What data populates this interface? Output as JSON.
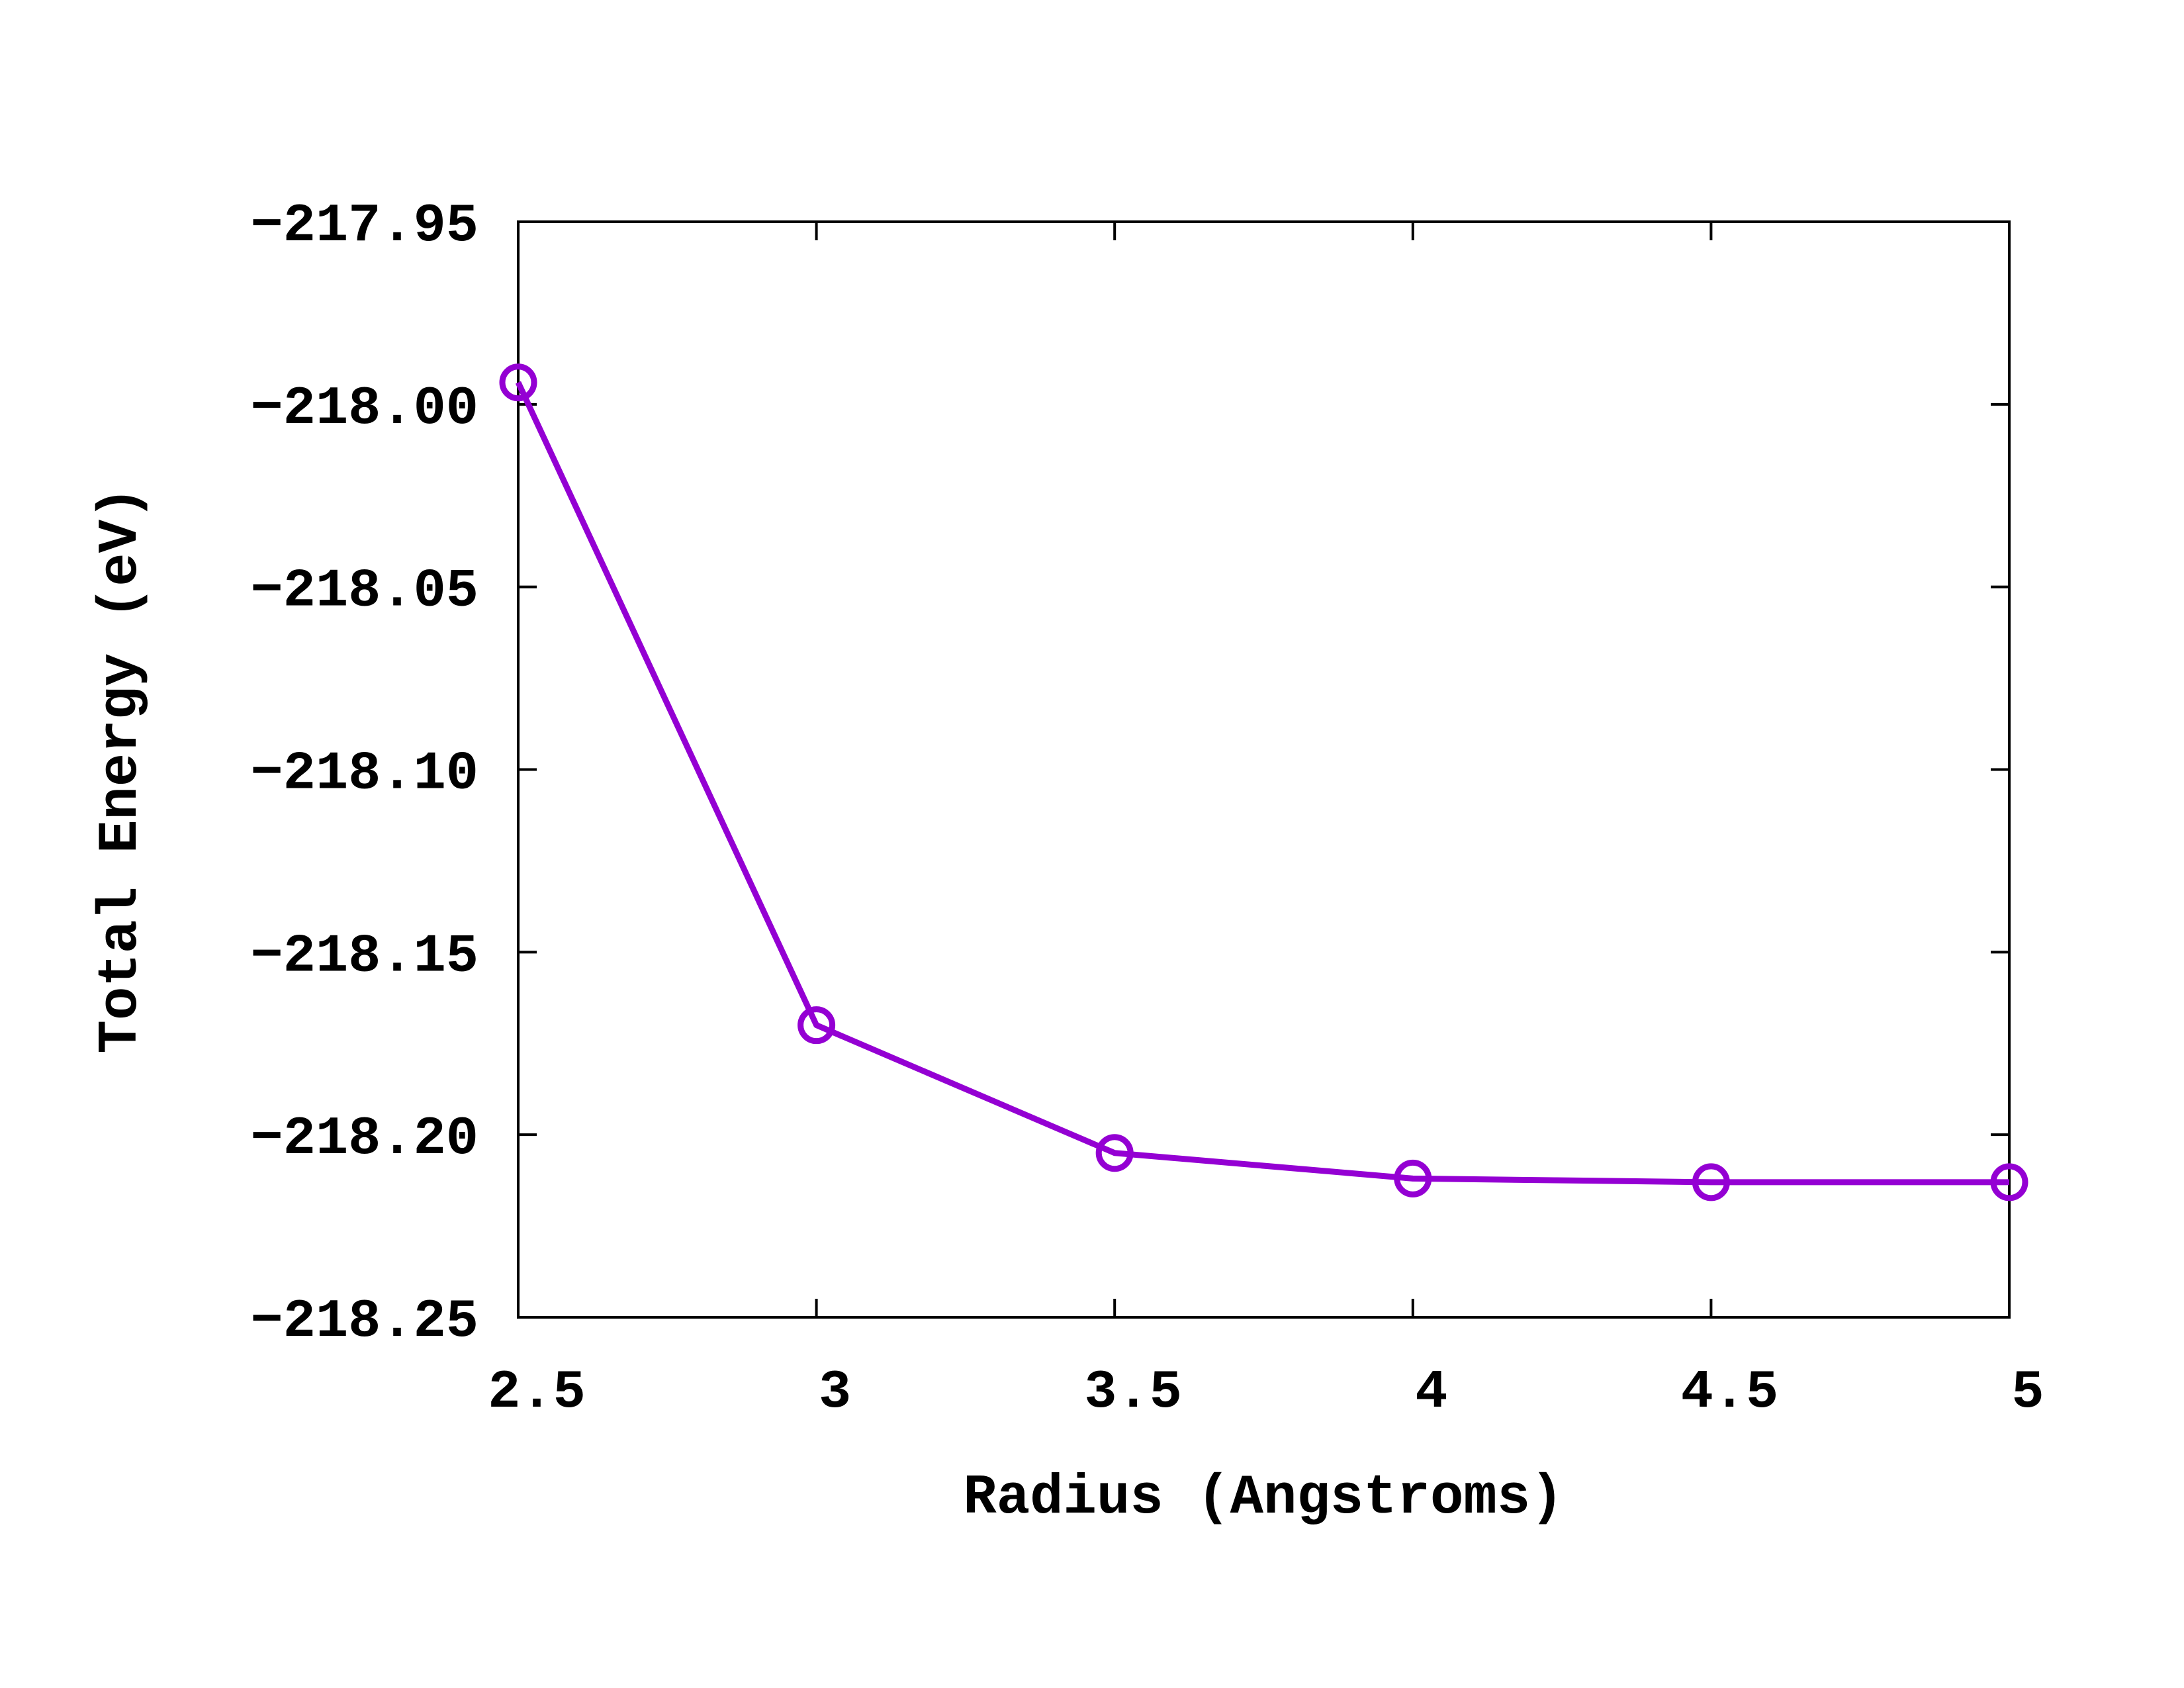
{
  "chart_data": {
    "type": "line",
    "title": "",
    "xlabel": "Radius (Angstroms)",
    "ylabel": "Total Energy (eV)",
    "xlim": [
      2.5,
      5
    ],
    "ylim": [
      -218.25,
      -217.95
    ],
    "xticks": [
      "2.5",
      "3",
      "3.5",
      "4",
      "4.5",
      "5"
    ],
    "xtick_values": [
      2.5,
      3,
      3.5,
      4,
      4.5,
      5
    ],
    "yticks": [
      "−217.95",
      "−218.00",
      "−218.05",
      "−218.10",
      "−218.15",
      "−218.20",
      "−218.25"
    ],
    "ytick_values": [
      -217.95,
      -218.0,
      -218.05,
      -218.1,
      -218.15,
      -218.2,
      -218.25
    ],
    "grid": false,
    "legend": "none",
    "series": [
      {
        "color": "#9400d3",
        "marker": "circle-open",
        "x": [
          2.5,
          3,
          3.5,
          4,
          4.5,
          5
        ],
        "y": [
          -217.994,
          -218.17,
          -218.205,
          -218.212,
          -218.213,
          -218.213
        ]
      }
    ]
  }
}
